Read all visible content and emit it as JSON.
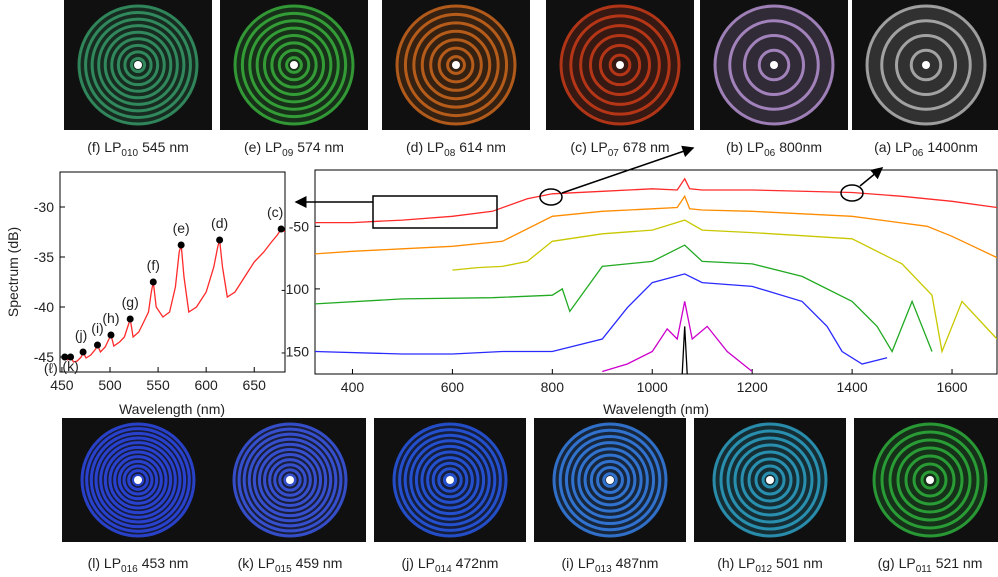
{
  "captions_top": [
    {
      "label": "(f) LP",
      "sub": "010",
      "text": "545 nm"
    },
    {
      "label": "(e) LP",
      "sub": "09",
      "text": "574 nm"
    },
    {
      "label": "(d) LP",
      "sub": "08",
      "text": "614 nm"
    },
    {
      "label": "(c) LP",
      "sub": "07",
      "text": "678 nm"
    },
    {
      "label": "(b) LP",
      "sub": "06",
      "text": "800nm"
    },
    {
      "label": "(a) LP",
      "sub": "06",
      "text": "1400nm"
    }
  ],
  "captions_bottom": [
    {
      "label": "(l) LP",
      "sub": "016",
      "text": "453 nm"
    },
    {
      "label": "(k) LP",
      "sub": "015",
      "text": "459 nm"
    },
    {
      "label": "(j) LP",
      "sub": "014",
      "text": "472nm"
    },
    {
      "label": "(i) LP",
      "sub": "013",
      "text": "487nm"
    },
    {
      "label": "(h) LP",
      "sub": "012",
      "text": "501 nm"
    },
    {
      "label": "(g) LP",
      "sub": "011",
      "text": "521 nm"
    }
  ],
  "chart_data": [
    {
      "type": "line",
      "xlabel": "Wavelength (nm)",
      "ylabel": "Spectrum (dB)",
      "xlim": [
        448,
        682
      ],
      "ylim": [
        -46.5,
        -26.5
      ],
      "xticks": [
        450,
        500,
        550,
        600,
        650
      ],
      "yticks": [
        -45,
        -40,
        -35,
        -30
      ],
      "series": [
        {
          "color": "#ff2a2a",
          "x": [
            450,
            453,
            456,
            459,
            462,
            466,
            470,
            472,
            475,
            480,
            485,
            487,
            490,
            495,
            499,
            501,
            504,
            510,
            515,
            519,
            521,
            524,
            530,
            535,
            540,
            543,
            545,
            548,
            555,
            562,
            568,
            572,
            574,
            577,
            582,
            590,
            600,
            608,
            612,
            614,
            617,
            622,
            630,
            640,
            650,
            660,
            668,
            674,
            678,
            682
          ],
          "values": [
            -45.2,
            -45,
            -45.3,
            -45,
            -45.5,
            -45.4,
            -45,
            -44.5,
            -45.1,
            -44.8,
            -44.2,
            -43.8,
            -44.5,
            -44,
            -43.2,
            -42.8,
            -43.9,
            -43.5,
            -43,
            -41.8,
            -41.2,
            -43,
            -42.5,
            -41.5,
            -40.5,
            -38.5,
            -37.5,
            -40,
            -41,
            -40.5,
            -38,
            -34.5,
            -33.8,
            -37,
            -40.5,
            -40,
            -38.5,
            -36,
            -34,
            -33.3,
            -36,
            -39,
            -38.5,
            -37,
            -35.5,
            -34.5,
            -33.5,
            -32.8,
            -32.2,
            -32.5
          ]
        },
        {
          "type": "scatter",
          "color": "#000000",
          "x": [
            453,
            459,
            472,
            487,
            501,
            521,
            545,
            574,
            614,
            678
          ],
          "values": [
            -45,
            -45,
            -44.5,
            -43.8,
            -42.8,
            -41.2,
            -37.5,
            -33.8,
            -33.3,
            -32.2
          ],
          "point_labels": [
            "(ℓ)",
            "(k)",
            "(j)",
            "(i)",
            "(h)",
            "(g)",
            "(f)",
            "(e)",
            "(d)",
            "(c)"
          ]
        }
      ]
    },
    {
      "type": "line",
      "xlabel": "Wavelength (nm)",
      "xlim": [
        325,
        1690
      ],
      "ylim": [
        -168,
        -5
      ],
      "xticks": [
        400,
        600,
        800,
        1000,
        1200,
        1400,
        1600
      ],
      "yticks": [
        -150,
        -100,
        -50
      ],
      "series": [
        {
          "color": "#ff2a2a",
          "x": [
            325,
            400,
            450,
            500,
            600,
            680,
            750,
            800,
            900,
            1000,
            1050,
            1065,
            1075,
            1100,
            1200,
            1400,
            1500,
            1600,
            1690
          ],
          "values": [
            -47,
            -47,
            -46,
            -45,
            -42,
            -38,
            -28,
            -24,
            -22,
            -20,
            -21,
            -12,
            -20,
            -21,
            -21,
            -23,
            -26,
            -30,
            -35
          ]
        },
        {
          "color": "#ff8c00",
          "x": [
            325,
            400,
            500,
            600,
            700,
            800,
            900,
            1000,
            1050,
            1065,
            1075,
            1100,
            1200,
            1400,
            1550,
            1600,
            1690
          ],
          "values": [
            -72,
            -70,
            -68,
            -66,
            -62,
            -42,
            -38,
            -36,
            -35,
            -26,
            -36,
            -37,
            -38,
            -42,
            -50,
            -58,
            -75
          ]
        },
        {
          "color": "#c8c800",
          "x": [
            600,
            650,
            700,
            750,
            800,
            900,
            1000,
            1065,
            1100,
            1200,
            1400,
            1500,
            1560,
            1580,
            1620,
            1690
          ],
          "values": [
            -85,
            -83,
            -82,
            -78,
            -62,
            -56,
            -53,
            -45,
            -53,
            -55,
            -60,
            -80,
            -105,
            -150,
            -110,
            -140
          ]
        },
        {
          "color": "#22aa22",
          "x": [
            325,
            500,
            680,
            800,
            820,
            835,
            900,
            1000,
            1065,
            1100,
            1200,
            1300,
            1400,
            1450,
            1480,
            1520,
            1560
          ],
          "values": [
            -112,
            -108,
            -107,
            -105,
            -100,
            -118,
            -82,
            -78,
            -65,
            -78,
            -80,
            -90,
            -110,
            -130,
            -150,
            -110,
            -150
          ]
        },
        {
          "color": "#2a2aff",
          "x": [
            325,
            500,
            600,
            700,
            800,
            900,
            950,
            1000,
            1065,
            1100,
            1200,
            1300,
            1350,
            1380,
            1420,
            1470
          ],
          "values": [
            -150,
            -152,
            -152,
            -150,
            -150,
            -140,
            -115,
            -95,
            -88,
            -95,
            -98,
            -110,
            -130,
            -150,
            -160,
            -155
          ]
        },
        {
          "color": "#cc00cc",
          "x": [
            900,
            950,
            1000,
            1030,
            1050,
            1065,
            1080,
            1110,
            1150,
            1200
          ],
          "values": [
            -166,
            -160,
            -150,
            -132,
            -140,
            -110,
            -140,
            -130,
            -150,
            -166
          ]
        },
        {
          "color": "#000000",
          "x": [
            1060,
            1065,
            1070
          ],
          "values": [
            -168,
            -130,
            -168
          ]
        }
      ]
    }
  ]
}
